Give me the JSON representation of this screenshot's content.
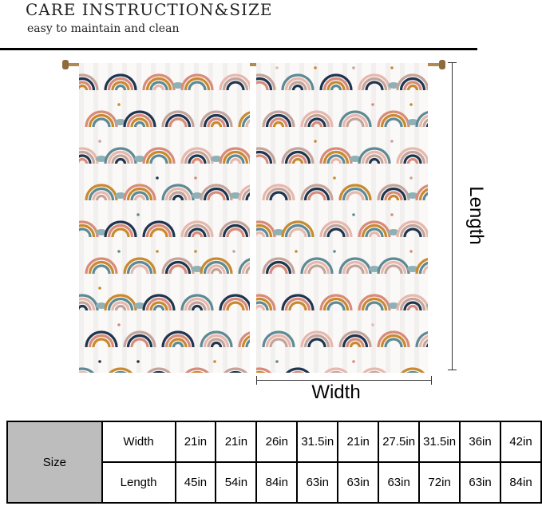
{
  "header": {
    "title": "CARE INSTRUCTION&SIZE",
    "subtitle": "easy to maintain and clean"
  },
  "dimensions": {
    "length_label": "Length",
    "width_label": "Width"
  },
  "size_table": {
    "header": "Size",
    "width_label": "Width",
    "length_label": "Length",
    "widths": [
      "21in",
      "21in",
      "26in",
      "31.5in",
      "21in",
      "27.5in",
      "31.5in",
      "36in",
      "42in"
    ],
    "lengths": [
      "45in",
      "54in",
      "84in",
      "63in",
      "63in",
      "63in",
      "72in",
      "63in",
      "84in"
    ]
  },
  "colors": {
    "rod": "#b08a52",
    "table_header_bg": "#bdbdbd",
    "rainbow_palette": [
      "#1f3550",
      "#d98b7a",
      "#c98a2f",
      "#5d8a94",
      "#e7b8ae",
      "#c4a49a"
    ]
  }
}
